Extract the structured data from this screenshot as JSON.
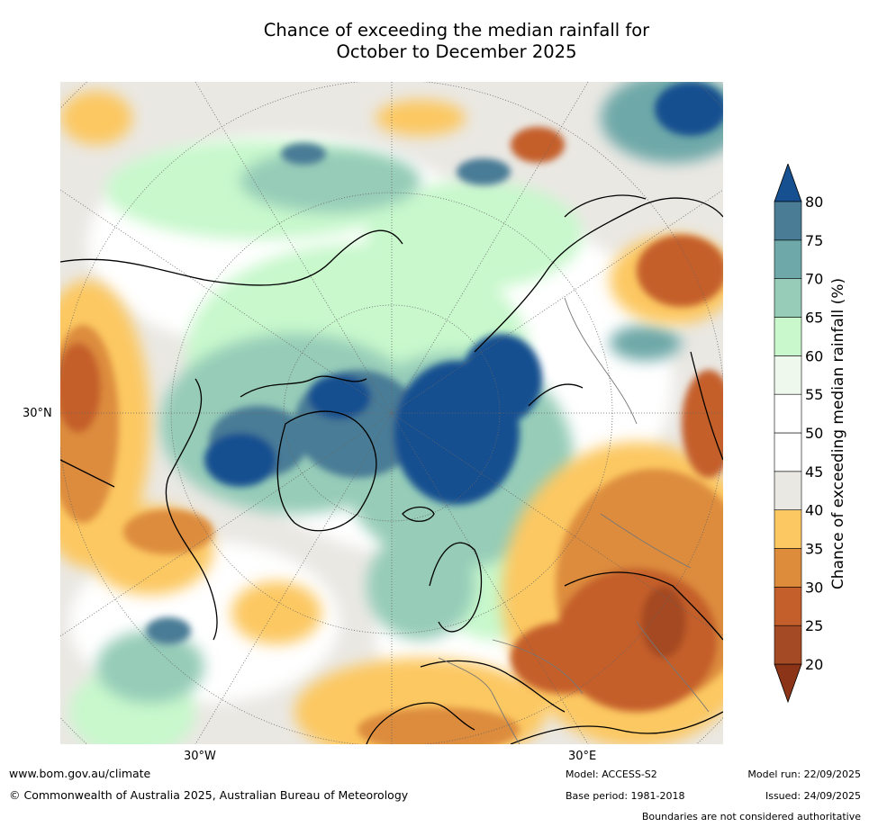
{
  "title_line1": "Chance of exceeding the median rainfall for",
  "title_line2": "October to December 2025",
  "map_labels": {
    "lat_label": "30°N",
    "lon_west": "30°W",
    "lon_east": "30°E"
  },
  "colorbar": {
    "title": "Chance of exceeding median rainfall (%)",
    "levels": [
      {
        "label": "20",
        "color": "#a44a24"
      },
      {
        "label": "25",
        "color": "#c45f2c"
      },
      {
        "label": "30",
        "color": "#dd8c3c"
      },
      {
        "label": "35",
        "color": "#fcc862"
      },
      {
        "label": "40",
        "color": "#eae8e3"
      },
      {
        "label": "45",
        "color": "#ffffff"
      },
      {
        "label": "50",
        "color": "#ffffff"
      },
      {
        "label": "55",
        "color": "#eef8ec"
      },
      {
        "label": "60",
        "color": "#c8f8cc"
      },
      {
        "label": "65",
        "color": "#96ccb8"
      },
      {
        "label": "70",
        "color": "#6ea8a8"
      },
      {
        "label": "75",
        "color": "#4a7c96"
      },
      {
        "label": "80",
        "color": ""
      }
    ],
    "low_extend_color": "#8c3418",
    "high_extend_color": "#165090"
  },
  "footer": {
    "url": "www.bom.gov.au/climate",
    "copyright": "© Commonwealth of Australia 2025, Australian Bureau of Meteorology",
    "model": "Model: ACCESS-S2",
    "base_period": "Base period: 1981-2018",
    "model_run": "Model run: 22/09/2025",
    "issued": "Issued: 24/09/2025",
    "disclaimer": "Boundaries are not considered authoritative"
  }
}
